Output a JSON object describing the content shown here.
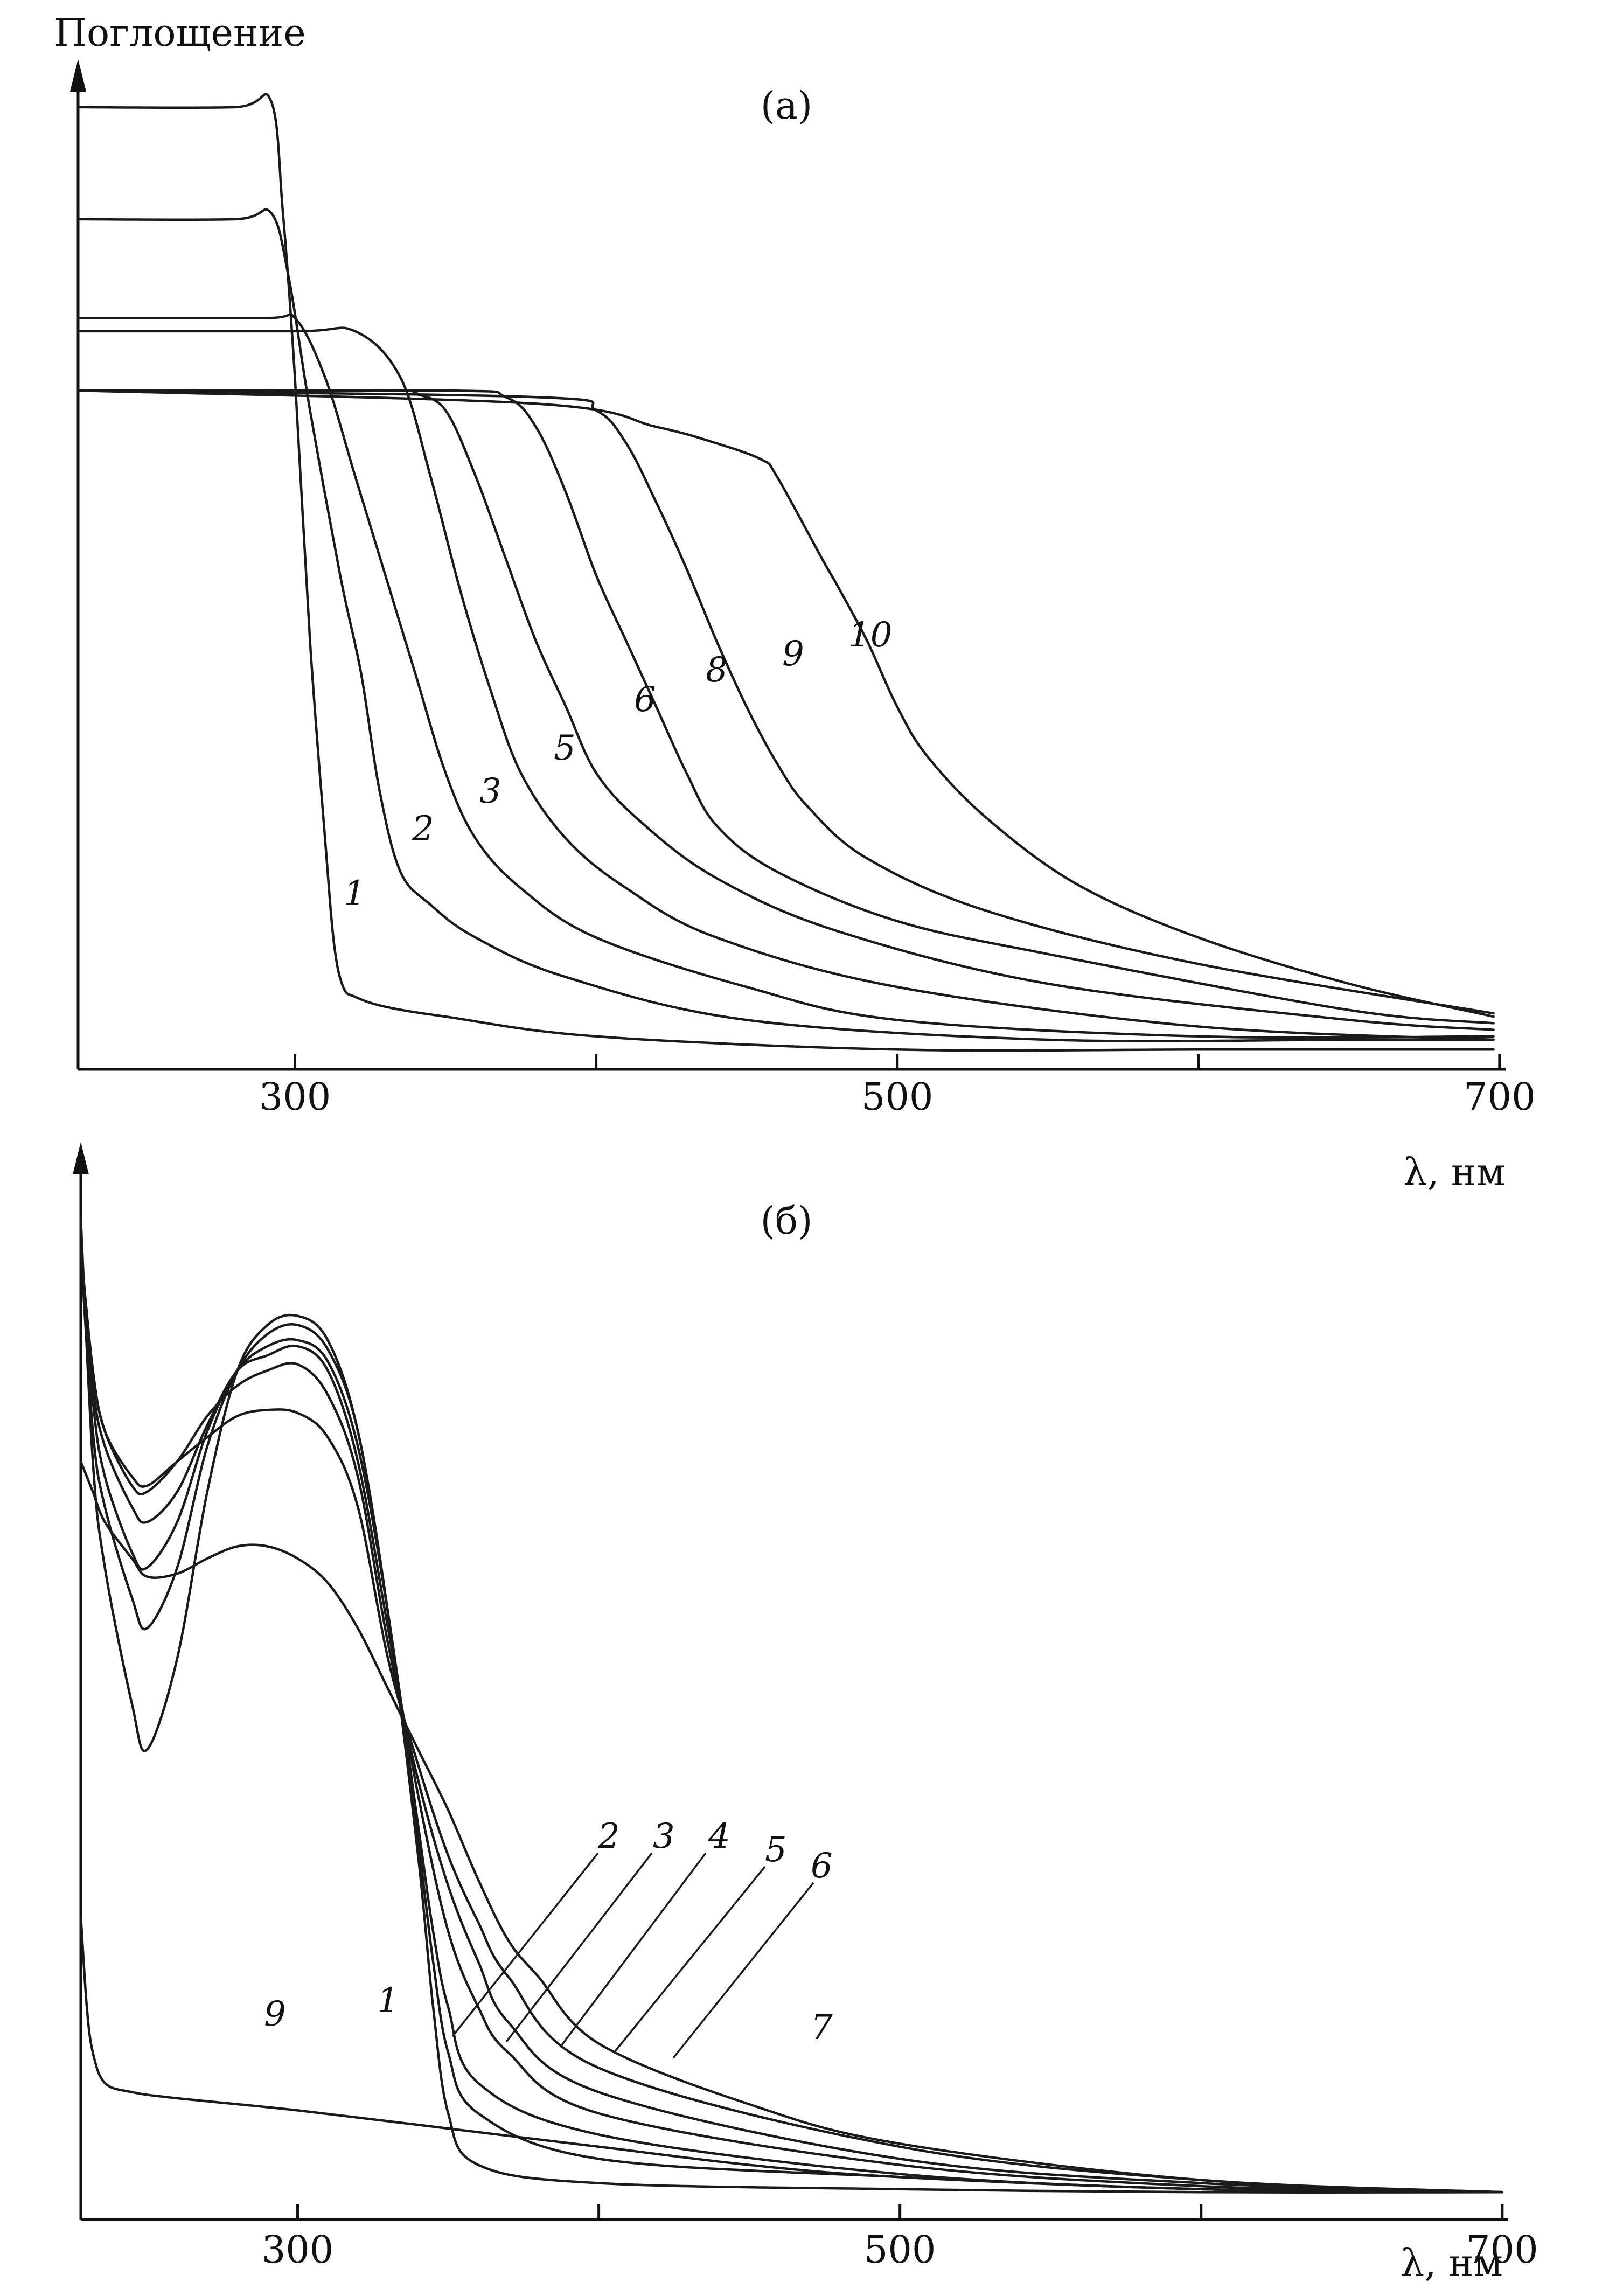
{
  "chart_data": [
    {
      "type": "line",
      "panel_label": "(а)",
      "ylabel": "Поглощение",
      "xlabel": "λ, нм",
      "xlim": [
        228,
        702
      ],
      "ylim": [
        0,
        3.0
      ],
      "xticks": [
        300,
        400,
        500,
        600,
        700
      ],
      "xtick_labels": [
        "300",
        "",
        "500",
        "",
        "700"
      ],
      "grid": false,
      "series": [
        {
          "name": "1",
          "x": [
            228,
            280,
            292,
            296,
            300,
            305,
            310,
            313,
            316,
            320,
            330,
            350,
            400,
            500,
            600,
            698
          ],
          "y": [
            2.92,
            2.92,
            2.94,
            2.6,
            2.1,
            1.3,
            0.7,
            0.38,
            0.25,
            0.22,
            0.19,
            0.16,
            0.1,
            0.06,
            0.06,
            0.06
          ]
        },
        {
          "name": "2",
          "x": [
            228,
            280,
            292,
            298,
            305,
            315,
            322,
            328,
            335,
            345,
            360,
            390,
            450,
            550,
            650,
            698
          ],
          "y": [
            2.58,
            2.58,
            2.6,
            2.4,
            2.0,
            1.5,
            1.2,
            0.85,
            0.6,
            0.5,
            0.4,
            0.28,
            0.15,
            0.09,
            0.09,
            0.09
          ]
        },
        {
          "name": "3",
          "x": [
            228,
            290,
            300,
            310,
            320,
            330,
            340,
            350,
            360,
            375,
            400,
            450,
            500,
            600,
            698
          ],
          "y": [
            2.28,
            2.28,
            2.28,
            2.1,
            1.8,
            1.5,
            1.2,
            0.9,
            0.7,
            0.55,
            0.4,
            0.25,
            0.15,
            0.1,
            0.1
          ]
        },
        {
          "name": "5",
          "x": [
            228,
            300,
            320,
            335,
            345,
            355,
            365,
            375,
            390,
            410,
            440,
            500,
            600,
            698
          ],
          "y": [
            2.24,
            2.24,
            2.24,
            2.1,
            1.8,
            1.45,
            1.15,
            0.9,
            0.7,
            0.55,
            0.4,
            0.25,
            0.13,
            0.09
          ]
        },
        {
          "name": "6",
          "x": [
            228,
            330,
            340,
            350,
            360,
            370,
            380,
            390,
            400,
            415,
            440,
            480,
            550,
            650,
            698
          ],
          "y": [
            2.06,
            2.06,
            2.05,
            2.0,
            1.8,
            1.55,
            1.3,
            1.1,
            0.9,
            0.75,
            0.58,
            0.42,
            0.26,
            0.15,
            0.12
          ]
        },
        {
          "name": "8",
          "x": [
            228,
            350,
            370,
            380,
            390,
            400,
            410,
            420,
            430,
            440,
            460,
            500,
            550,
            650,
            698
          ],
          "y": [
            2.06,
            2.06,
            2.04,
            1.95,
            1.75,
            1.5,
            1.3,
            1.1,
            0.9,
            0.74,
            0.6,
            0.45,
            0.35,
            0.18,
            0.14
          ]
        },
        {
          "name": "9",
          "x": [
            228,
            380,
            400,
            410,
            420,
            430,
            440,
            450,
            460,
            470,
            490,
            530,
            600,
            698
          ],
          "y": [
            2.06,
            2.04,
            2.0,
            1.9,
            1.72,
            1.52,
            1.3,
            1.1,
            0.93,
            0.8,
            0.64,
            0.48,
            0.32,
            0.17
          ]
        },
        {
          "name": "10",
          "x": [
            228,
            380,
            420,
            440,
            455,
            460,
            475,
            480,
            490,
            500,
            510,
            530,
            560,
            600,
            650,
            698
          ],
          "y": [
            2.06,
            2.02,
            1.95,
            1.9,
            1.85,
            1.8,
            1.55,
            1.47,
            1.3,
            1.1,
            0.95,
            0.76,
            0.56,
            0.4,
            0.26,
            0.16
          ]
        }
      ]
    },
    {
      "type": "line",
      "panel_label": "(б)",
      "xlabel": "λ, нм",
      "xlim": [
        228,
        702
      ],
      "ylim": [
        0,
        3.5
      ],
      "xticks": [
        300,
        400,
        500,
        600,
        700
      ],
      "xtick_labels": [
        "300",
        "",
        "500",
        "",
        "700"
      ],
      "grid": false,
      "series": [
        {
          "name": "1",
          "x": [
            228,
            232,
            236,
            245,
            250,
            260,
            270,
            280,
            290,
            300,
            310,
            320,
            330,
            340,
            345,
            350,
            360,
            400,
            500,
            600,
            700
          ],
          "y": [
            3.3,
            2.5,
            2.15,
            1.7,
            1.55,
            1.85,
            2.4,
            2.8,
            2.95,
            2.98,
            2.9,
            2.6,
            2.0,
            1.2,
            0.7,
            0.35,
            0.18,
            0.12,
            0.1,
            0.09,
            0.09
          ]
        },
        {
          "name": "2",
          "x": [
            228,
            232,
            236,
            245,
            250,
            260,
            270,
            280,
            290,
            300,
            310,
            320,
            330,
            340,
            345,
            350,
            360,
            400,
            500,
            600,
            700
          ],
          "y": [
            3.2,
            2.6,
            2.35,
            2.05,
            1.95,
            2.15,
            2.55,
            2.8,
            2.92,
            2.95,
            2.87,
            2.6,
            2.0,
            1.25,
            0.85,
            0.55,
            0.35,
            0.2,
            0.14,
            0.1,
            0.09
          ]
        },
        {
          "name": "3",
          "x": [
            228,
            232,
            236,
            245,
            250,
            260,
            270,
            280,
            290,
            300,
            310,
            320,
            330,
            340,
            345,
            350,
            360,
            400,
            500,
            600,
            700
          ],
          "y": [
            3.2,
            2.7,
            2.45,
            2.2,
            2.15,
            2.3,
            2.6,
            2.8,
            2.88,
            2.9,
            2.83,
            2.55,
            2.0,
            1.3,
            0.95,
            0.7,
            0.45,
            0.28,
            0.15,
            0.1,
            0.09
          ]
        },
        {
          "name": "4",
          "x": [
            228,
            232,
            236,
            245,
            250,
            260,
            270,
            280,
            290,
            300,
            310,
            320,
            330,
            340,
            350,
            360,
            370,
            400,
            500,
            600,
            700
          ],
          "y": [
            3.2,
            2.75,
            2.55,
            2.35,
            2.3,
            2.4,
            2.62,
            2.8,
            2.85,
            2.88,
            2.8,
            2.5,
            1.95,
            1.4,
            0.95,
            0.7,
            0.55,
            0.35,
            0.18,
            0.11,
            0.09
          ]
        },
        {
          "name": "5",
          "x": [
            228,
            232,
            236,
            245,
            250,
            260,
            270,
            280,
            290,
            300,
            310,
            320,
            330,
            340,
            350,
            360,
            370,
            400,
            500,
            600,
            700
          ],
          "y": [
            3.2,
            2.8,
            2.6,
            2.42,
            2.4,
            2.5,
            2.65,
            2.75,
            2.8,
            2.82,
            2.72,
            2.45,
            1.9,
            1.45,
            1.1,
            0.85,
            0.65,
            0.42,
            0.2,
            0.12,
            0.09
          ]
        },
        {
          "name": "6",
          "x": [
            228,
            232,
            236,
            245,
            250,
            260,
            270,
            280,
            290,
            300,
            310,
            320,
            330,
            340,
            350,
            360,
            370,
            400,
            500,
            600,
            700
          ],
          "y": [
            3.2,
            2.8,
            2.6,
            2.45,
            2.42,
            2.5,
            2.58,
            2.65,
            2.67,
            2.66,
            2.58,
            2.35,
            1.85,
            1.5,
            1.2,
            0.98,
            0.8,
            0.5,
            0.24,
            0.13,
            0.09
          ]
        },
        {
          "name": "7",
          "x": [
            228,
            232,
            236,
            245,
            250,
            260,
            270,
            280,
            290,
            300,
            310,
            320,
            330,
            340,
            350,
            360,
            370,
            380,
            400,
            450,
            500,
            600,
            700
          ],
          "y": [
            2.5,
            2.4,
            2.3,
            2.18,
            2.12,
            2.13,
            2.18,
            2.22,
            2.22,
            2.18,
            2.1,
            1.95,
            1.75,
            1.55,
            1.35,
            1.12,
            0.92,
            0.8,
            0.58,
            0.38,
            0.25,
            0.13,
            0.09
          ]
        },
        {
          "name": "9",
          "x": [
            228,
            230,
            232,
            236,
            245,
            260,
            300,
            350,
            400,
            450,
            500,
            600,
            700
          ],
          "y": [
            1.0,
            0.7,
            0.55,
            0.45,
            0.42,
            0.4,
            0.36,
            0.3,
            0.24,
            0.18,
            0.14,
            0.1,
            0.09
          ]
        }
      ]
    }
  ]
}
